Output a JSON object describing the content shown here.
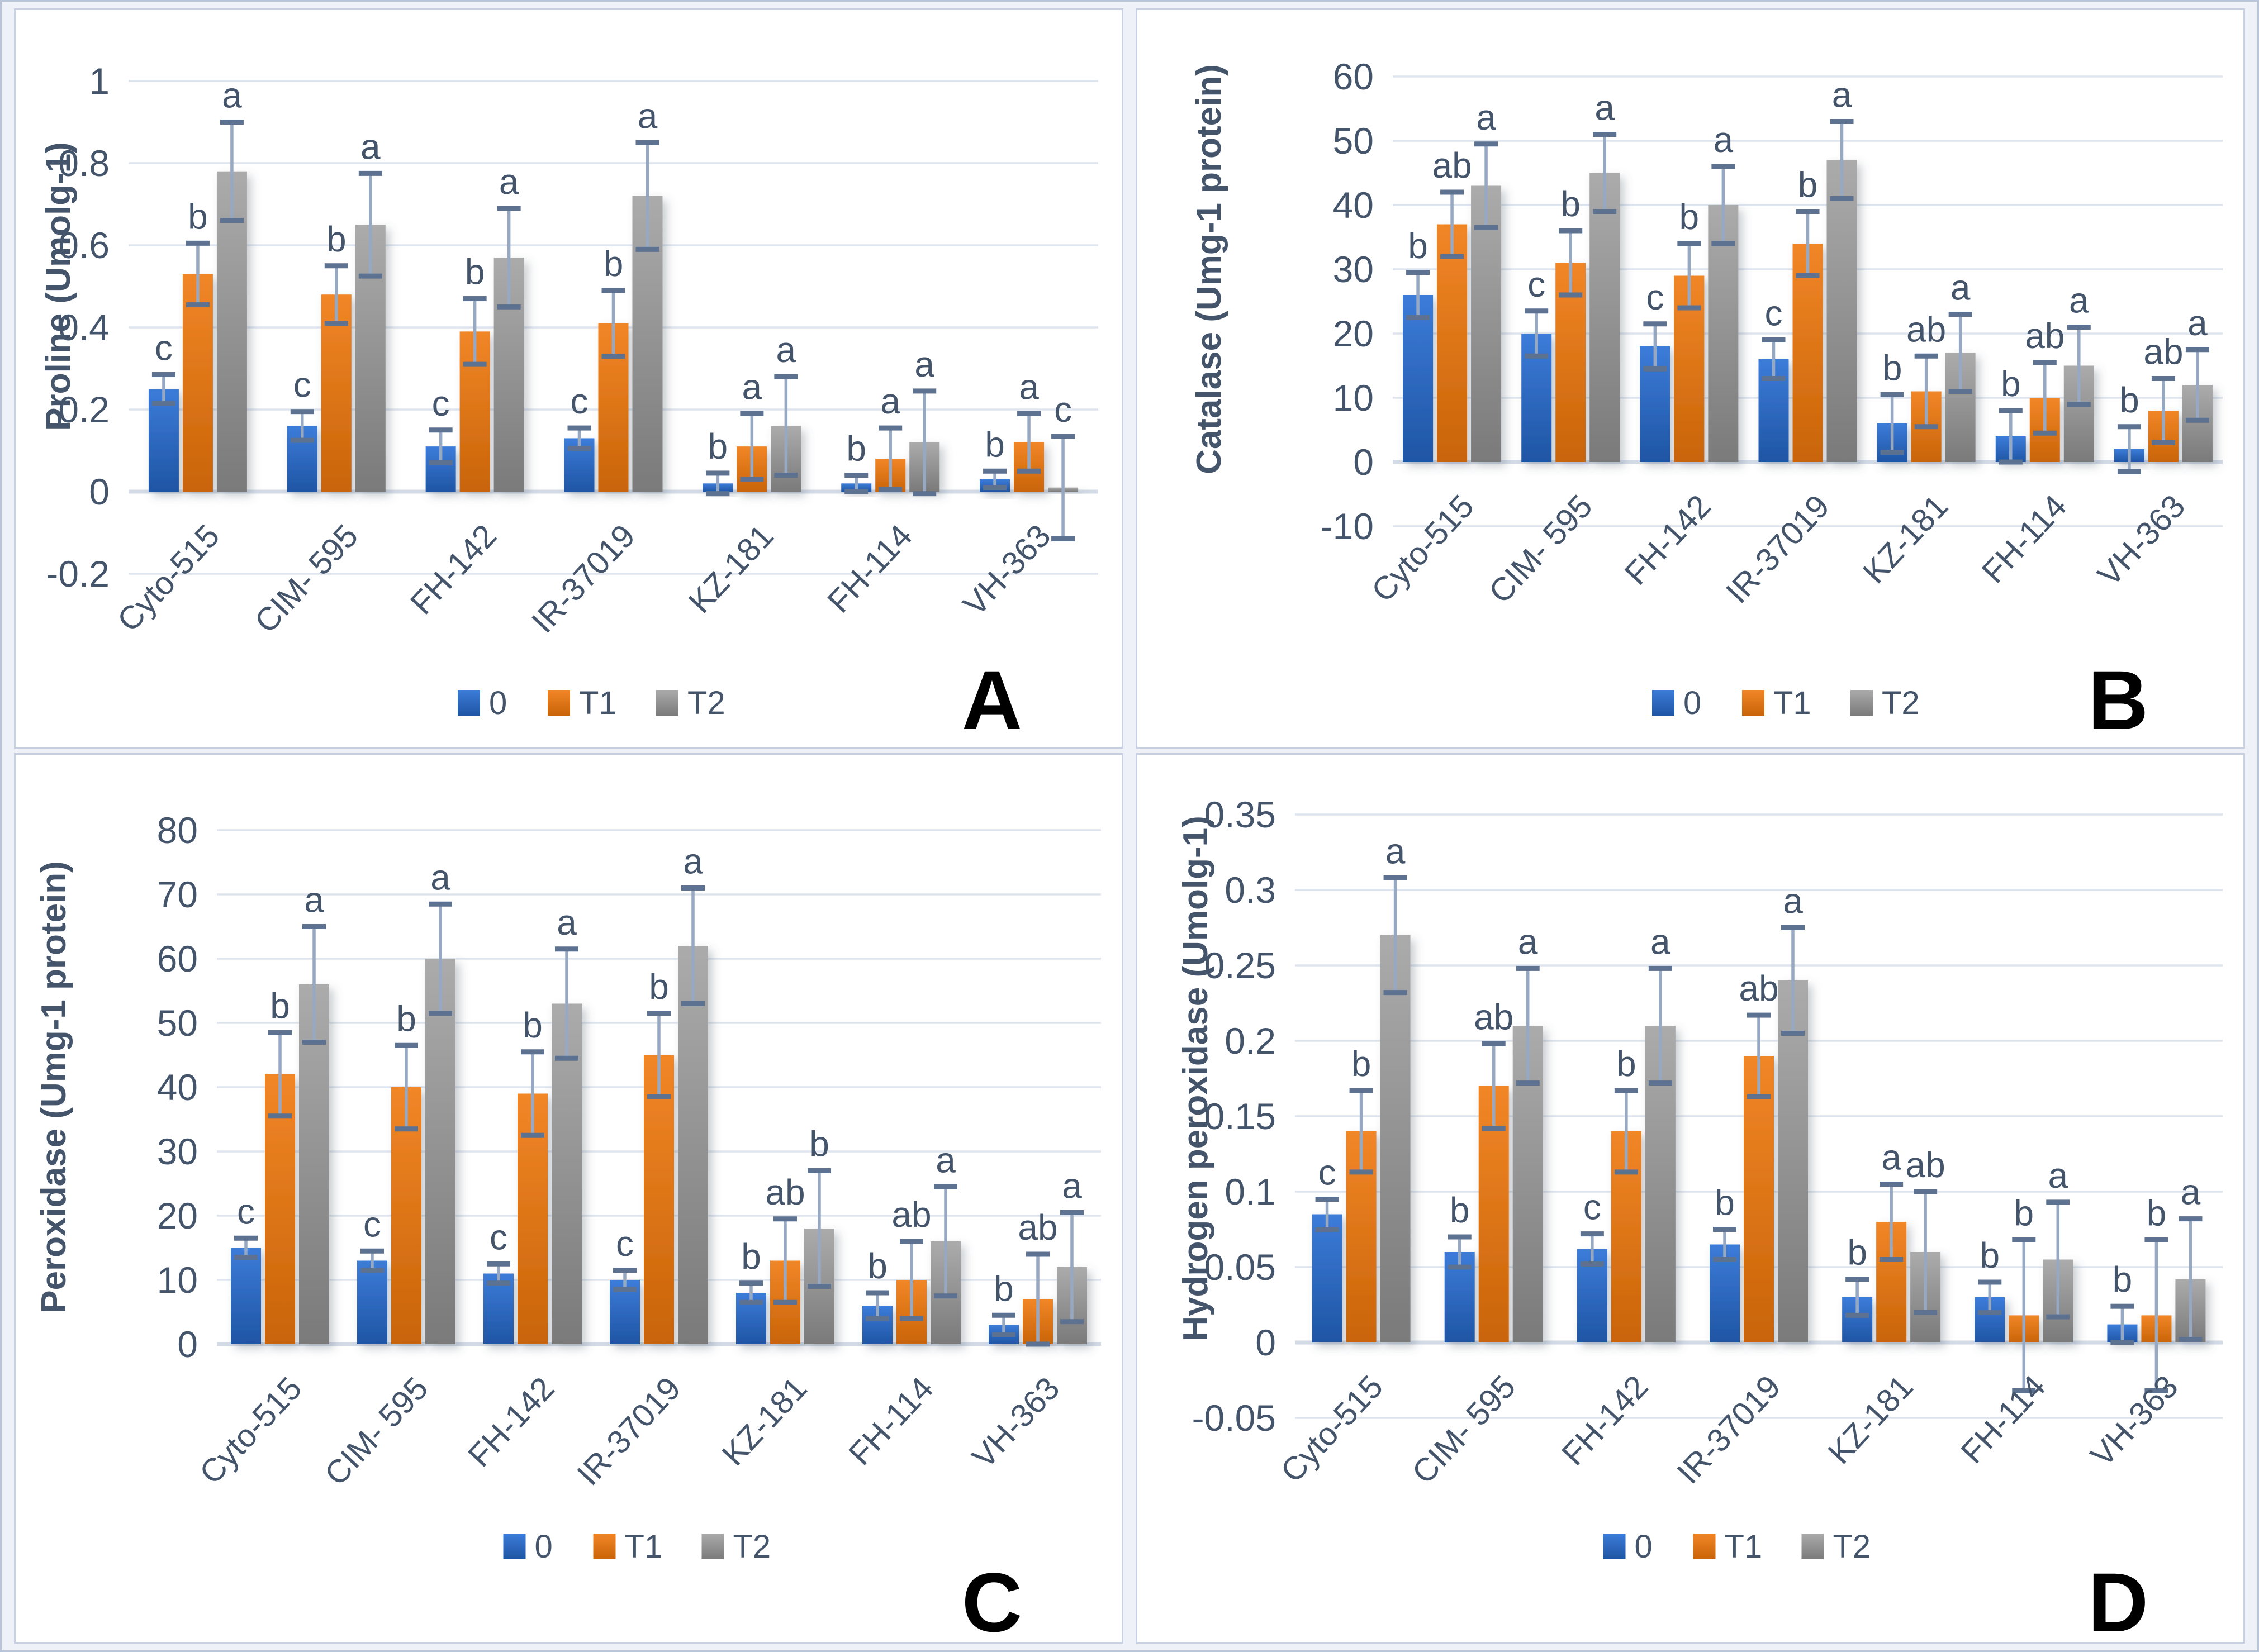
{
  "figure": {
    "background": "#eef1f7",
    "panel_background": "#ffffff",
    "panel_border_color": "#c6d0e2",
    "axis_text_color": "#44546A",
    "gridline_color": "#dfe5ef",
    "baseline_color": "#d3dbe7",
    "error_line_color": "#97a9c2",
    "error_cap_color": "#5d7190",
    "panel_letter_color": "#000000",
    "series_colors": {
      "blue_top": "#3c7cd9",
      "blue_bottom": "#1f55a4",
      "orange_top": "#f18627",
      "orange_bottom": "#c96408",
      "gray_top": "#ababab",
      "gray_bottom": "#7a7a7a"
    }
  },
  "legend": {
    "labels": [
      "0",
      "T1",
      "T2"
    ]
  },
  "categories": [
    "Cyto-515",
    "CIM- 595",
    "FH-142",
    "IR-37019",
    "KZ-181",
    "FH-114",
    "VH-363"
  ],
  "chart_data": [
    {
      "type": "bar",
      "panel_letter": "A",
      "ylabel": "Proline (Umolg-1)",
      "ylim": [
        -0.2,
        1
      ],
      "ytick_step": 0.2,
      "yticks": [
        1,
        0.8,
        0.6,
        0.4,
        0.2,
        0,
        -0.2
      ],
      "grid": true,
      "legend_position": "bottom",
      "categories": [
        "Cyto-515",
        "CIM- 595",
        "FH-142",
        "IR-37019",
        "KZ-181",
        "FH-114",
        "VH-363"
      ],
      "series": [
        {
          "name": "0",
          "values": [
            0.25,
            0.16,
            0.11,
            0.13,
            0.02,
            0.02,
            0.03
          ],
          "errors": [
            0.035,
            0.035,
            0.04,
            0.025,
            0.025,
            0.02,
            0.02
          ],
          "letters": [
            "c",
            "c",
            "c",
            "c",
            "b",
            "b",
            "b"
          ]
        },
        {
          "name": "T1",
          "values": [
            0.53,
            0.48,
            0.39,
            0.41,
            0.11,
            0.08,
            0.12
          ],
          "errors": [
            0.075,
            0.07,
            0.08,
            0.08,
            0.08,
            0.075,
            0.07
          ],
          "letters": [
            "b",
            "b",
            "b",
            "b",
            "a",
            "a",
            "a"
          ]
        },
        {
          "name": "T2",
          "values": [
            0.78,
            0.65,
            0.57,
            0.72,
            0.16,
            0.12,
            0.01
          ],
          "errors": [
            0.12,
            0.125,
            0.12,
            0.13,
            0.12,
            0.125,
            0.125
          ],
          "letters": [
            "a",
            "a",
            "a",
            "a",
            "a",
            "a",
            "c"
          ]
        }
      ]
    },
    {
      "type": "bar",
      "panel_letter": "B",
      "ylabel": "Catalase (Umg-1 protein)",
      "ylim": [
        -10,
        60
      ],
      "ytick_step": 10,
      "yticks": [
        60,
        50,
        40,
        30,
        20,
        10,
        0,
        -10
      ],
      "grid": true,
      "legend_position": "bottom",
      "categories": [
        "Cyto-515",
        "CIM- 595",
        "FH-142",
        "IR-37019",
        "KZ-181",
        "FH-114",
        "VH-363"
      ],
      "series": [
        {
          "name": "0",
          "values": [
            26,
            20,
            18,
            16,
            6,
            4,
            2
          ],
          "errors": [
            3.5,
            3.5,
            3.5,
            3,
            4.5,
            4,
            3.5
          ],
          "letters": [
            "b",
            "c",
            "c",
            "c",
            "b",
            "b",
            "b"
          ]
        },
        {
          "name": "T1",
          "values": [
            37,
            31,
            29,
            34,
            11,
            10,
            8
          ],
          "errors": [
            5,
            5,
            5,
            5,
            5.5,
            5.5,
            5
          ],
          "letters": [
            "ab",
            "b",
            "b",
            "b",
            "ab",
            "ab",
            "ab"
          ]
        },
        {
          "name": "T2",
          "values": [
            43,
            45,
            40,
            47,
            17,
            15,
            12
          ],
          "errors": [
            6.5,
            6,
            6,
            6,
            6,
            6,
            5.5
          ],
          "letters": [
            "a",
            "a",
            "a",
            "a",
            "a",
            "a",
            "a"
          ]
        }
      ]
    },
    {
      "type": "bar",
      "panel_letter": "C",
      "ylabel": "Peroxidase (Umg-1 protein)",
      "ylim": [
        0,
        80
      ],
      "ytick_step": 10,
      "yticks": [
        80,
        70,
        60,
        50,
        40,
        30,
        20,
        10,
        0
      ],
      "grid": true,
      "legend_position": "bottom",
      "categories": [
        "Cyto-515",
        "CIM- 595",
        "FH-142",
        "IR-37019",
        "KZ-181",
        "FH-114",
        "VH-363"
      ],
      "series": [
        {
          "name": "0",
          "values": [
            15,
            13,
            11,
            10,
            8,
            6,
            3
          ],
          "errors": [
            1.5,
            1.5,
            1.5,
            1.5,
            1.5,
            2,
            1.5
          ],
          "letters": [
            "c",
            "c",
            "c",
            "c",
            "b",
            "b",
            "b"
          ]
        },
        {
          "name": "T1",
          "values": [
            42,
            40,
            39,
            45,
            13,
            10,
            7
          ],
          "errors": [
            6.5,
            6.5,
            6.5,
            6.5,
            6.5,
            6,
            7
          ],
          "letters": [
            "b",
            "b",
            "b",
            "b",
            "ab",
            "ab",
            "ab"
          ]
        },
        {
          "name": "T2",
          "values": [
            56,
            60,
            53,
            62,
            18,
            16,
            12
          ],
          "errors": [
            9,
            8.5,
            8.5,
            9,
            9,
            8.5,
            8.5
          ],
          "letters": [
            "a",
            "a",
            "a",
            "a",
            "b",
            "a",
            "a"
          ]
        }
      ]
    },
    {
      "type": "bar",
      "panel_letter": "D",
      "ylabel": "Hydrogen peroxidase (Umolg-1)",
      "ylim": [
        -0.05,
        0.35
      ],
      "ytick_step": 0.05,
      "yticks": [
        0.35,
        0.3,
        0.25,
        0.2,
        0.15,
        0.1,
        0.05,
        0,
        -0.05
      ],
      "grid": true,
      "legend_position": "bottom",
      "categories": [
        "Cyto-515",
        "CIM- 595",
        "FH-142",
        "IR-37019",
        "KZ-181",
        "FH-114",
        "VH-363"
      ],
      "series": [
        {
          "name": "0",
          "values": [
            0.085,
            0.06,
            0.062,
            0.065,
            0.03,
            0.03,
            0.012
          ],
          "errors": [
            0.01,
            0.01,
            0.01,
            0.01,
            0.012,
            0.01,
            0.012
          ],
          "letters": [
            "c",
            "b",
            "c",
            "b",
            "b",
            "b",
            "b"
          ]
        },
        {
          "name": "T1",
          "values": [
            0.14,
            0.17,
            0.14,
            0.19,
            0.08,
            0.018,
            0.018
          ],
          "errors": [
            0.027,
            0.028,
            0.027,
            0.027,
            0.025,
            0.05,
            0.05
          ],
          "letters": [
            "b",
            "ab",
            "b",
            "ab",
            "a",
            "b",
            "b"
          ]
        },
        {
          "name": "T2",
          "values": [
            0.27,
            0.21,
            0.21,
            0.24,
            0.06,
            0.055,
            0.042
          ],
          "errors": [
            0.038,
            0.038,
            0.038,
            0.035,
            0.04,
            0.038,
            0.04
          ],
          "letters": [
            "a",
            "a",
            "a",
            "a",
            "ab",
            "a",
            "a"
          ]
        }
      ]
    }
  ]
}
